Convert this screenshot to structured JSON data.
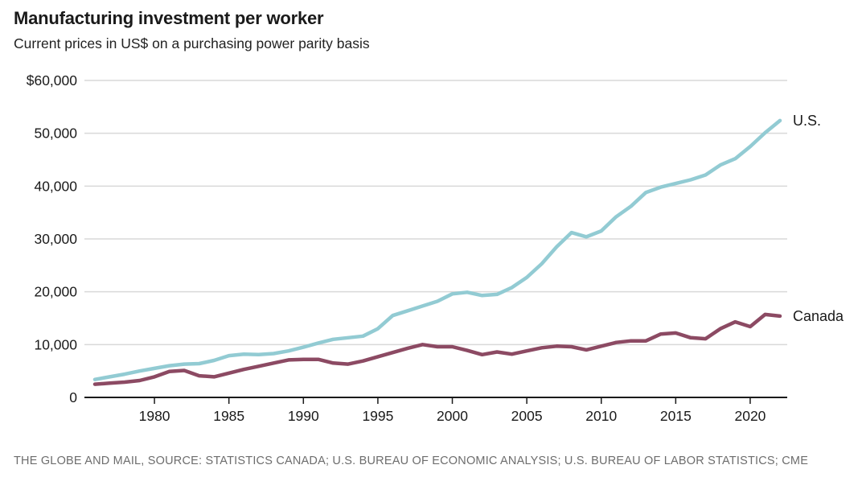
{
  "header": {
    "title": "Manufacturing investment per worker",
    "subtitle": "Current prices in US$ on a purchasing power parity basis"
  },
  "footer": {
    "source": "THE GLOBE AND MAIL, SOURCE: STATISTICS CANADA; U.S. BUREAU OF ECONOMIC ANALYSIS; U.S. BUREAU OF LABOR STATISTICS; CME"
  },
  "colors": {
    "us_line": "#92cbd3",
    "canada_line": "#8c4a63",
    "grid": "#d9d9d9",
    "axis": "#1a1a1a",
    "text": "#1a1a1a",
    "source_text": "#6d6d6d"
  },
  "chart_data": {
    "type": "line",
    "title": "Manufacturing investment per worker",
    "subtitle": "Current prices in US$ on a purchasing power parity basis",
    "xlabel": "",
    "ylabel": "",
    "xlim": [
      1976,
      2022
    ],
    "ylim": [
      0,
      60000
    ],
    "grid": true,
    "legend_position": "end-of-line-labels",
    "x_ticks": [
      1980,
      1985,
      1990,
      1995,
      2000,
      2005,
      2010,
      2015,
      2020
    ],
    "y_ticks": [
      {
        "value": 0,
        "label": "0"
      },
      {
        "value": 10000,
        "label": "10,000"
      },
      {
        "value": 20000,
        "label": "20,000"
      },
      {
        "value": 30000,
        "label": "30,000"
      },
      {
        "value": 40000,
        "label": "40,000"
      },
      {
        "value": 50000,
        "label": "50,000"
      },
      {
        "value": 60000,
        "label": "$60,000"
      }
    ],
    "x": [
      1976,
      1977,
      1978,
      1979,
      1980,
      1981,
      1982,
      1983,
      1984,
      1985,
      1986,
      1987,
      1988,
      1989,
      1990,
      1991,
      1992,
      1993,
      1994,
      1995,
      1996,
      1997,
      1998,
      1999,
      2000,
      2001,
      2002,
      2003,
      2004,
      2005,
      2006,
      2007,
      2008,
      2009,
      2010,
      2011,
      2012,
      2013,
      2014,
      2015,
      2016,
      2017,
      2018,
      2019,
      2020,
      2021,
      2022
    ],
    "series": [
      {
        "name": "U.S.",
        "color": "#92cbd3",
        "values": [
          3400,
          3900,
          4400,
          5000,
          5500,
          6000,
          6300,
          6400,
          7000,
          7900,
          8200,
          8100,
          8300,
          8800,
          9500,
          10300,
          11000,
          11300,
          11600,
          13000,
          15500,
          16400,
          17300,
          18200,
          19600,
          19900,
          19300,
          19500,
          20800,
          22700,
          25300,
          28500,
          31200,
          30400,
          31500,
          34200,
          36200,
          38800,
          39800,
          40500,
          41200,
          42100,
          44000,
          45200,
          47500,
          50100,
          52400
        ]
      },
      {
        "name": "Canada",
        "color": "#8c4a63",
        "values": [
          2500,
          2700,
          2900,
          3200,
          3900,
          4900,
          5100,
          4100,
          3900,
          4600,
          5300,
          5900,
          6500,
          7100,
          7200,
          7200,
          6500,
          6300,
          6900,
          7700,
          8500,
          9300,
          10000,
          9600,
          9600,
          8900,
          8100,
          8600,
          8200,
          8800,
          9400,
          9700,
          9600,
          9000,
          9700,
          10400,
          10700,
          10700,
          12000,
          12200,
          11300,
          11100,
          13000,
          14300,
          13400,
          15700,
          15400
        ]
      }
    ]
  }
}
